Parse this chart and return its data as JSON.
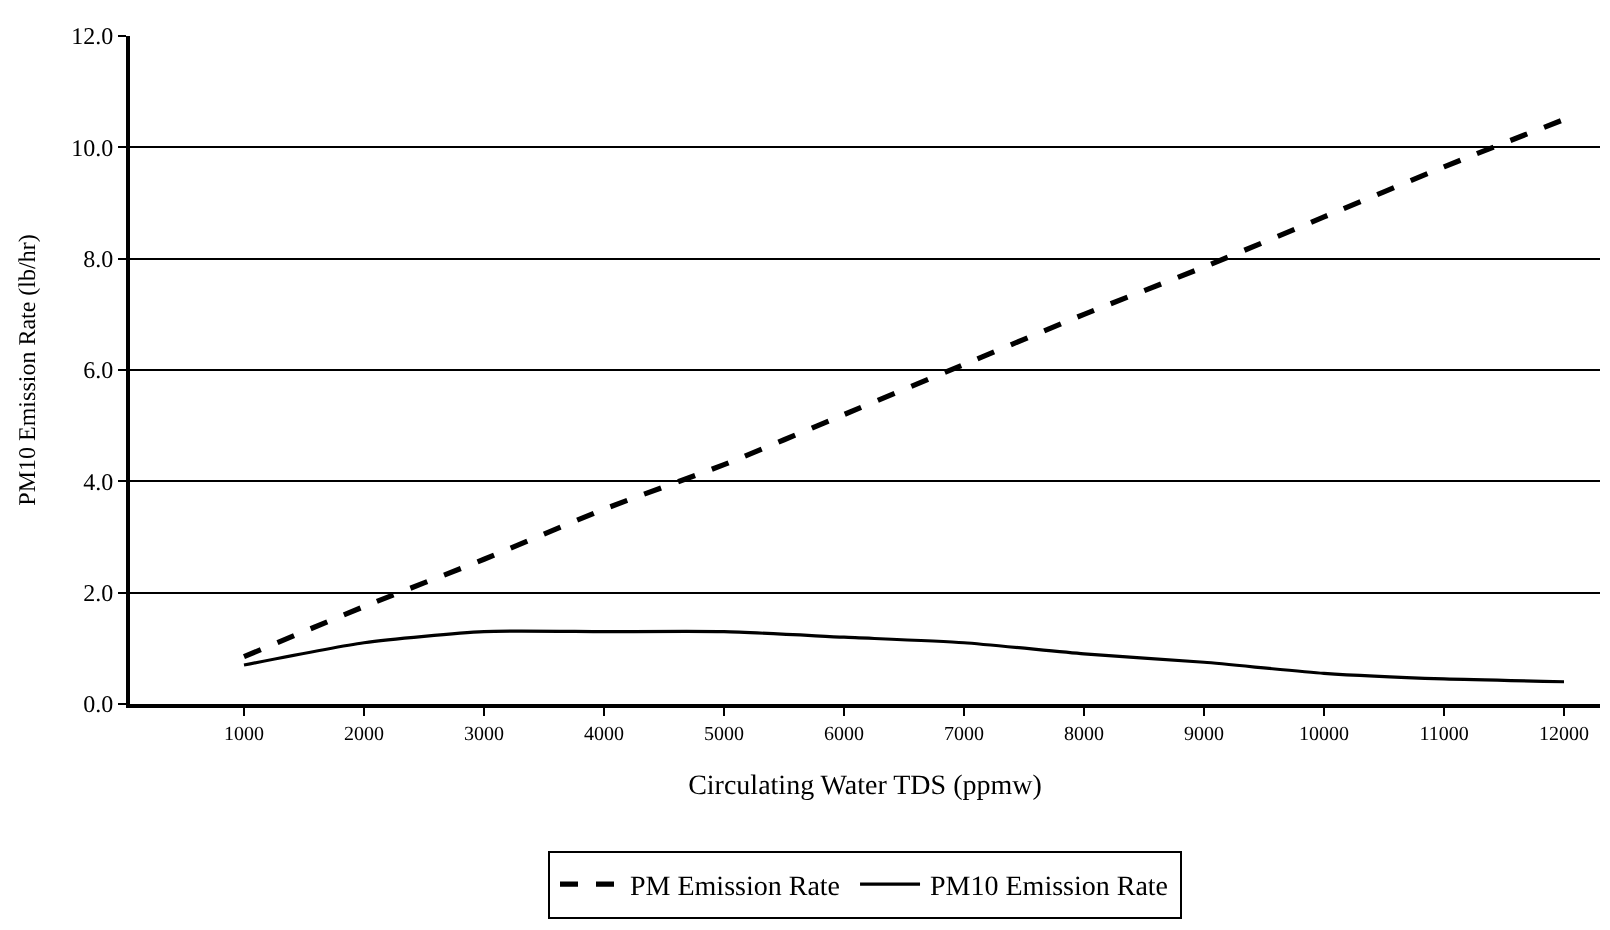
{
  "chart_data": {
    "type": "line",
    "xlabel": "Circulating Water TDS (ppmw)",
    "ylabel": "PM10 Emission Rate (lb/hr)",
    "x": [
      1000,
      2000,
      3000,
      4000,
      5000,
      6000,
      7000,
      8000,
      9000,
      10000,
      11000,
      12000
    ],
    "series": [
      {
        "name": "PM Emission Rate",
        "color": "#000000",
        "line_style": "dashed",
        "values": [
          0.85,
          1.75,
          2.6,
          3.5,
          4.3,
          5.2,
          6.1,
          7.0,
          7.85,
          8.75,
          9.65,
          10.5
        ]
      },
      {
        "name": "PM10 Emission Rate",
        "color": "#000000",
        "line_style": "solid",
        "values": [
          0.7,
          1.1,
          1.3,
          1.3,
          1.3,
          1.2,
          1.1,
          0.9,
          0.75,
          0.55,
          0.45,
          0.4
        ]
      }
    ],
    "xlim": [
      50,
      12300
    ],
    "xticks": [
      1000,
      2000,
      3000,
      4000,
      5000,
      6000,
      7000,
      8000,
      9000,
      10000,
      11000,
      12000
    ],
    "ylim": [
      0,
      12
    ],
    "yticks": [
      {
        "value": 0,
        "label": "0.0"
      },
      {
        "value": 2,
        "label": "2.0"
      },
      {
        "value": 4,
        "label": "4.0"
      },
      {
        "value": 6,
        "label": "6.0"
      },
      {
        "value": 8,
        "label": "8.0"
      },
      {
        "value": 10,
        "label": "10.0"
      },
      {
        "value": 12,
        "label": "12.0"
      }
    ],
    "grid": "y",
    "legend": "bottom",
    "marker": "none"
  }
}
